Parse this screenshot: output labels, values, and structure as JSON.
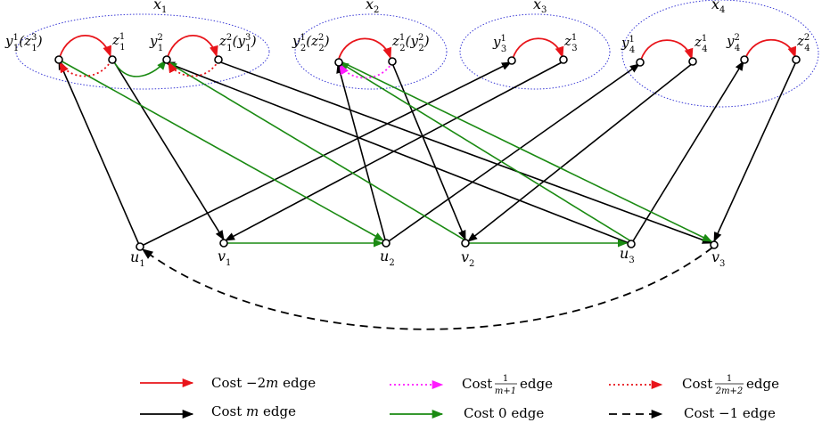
{
  "groups": [
    {
      "name": "x",
      "sub": "1"
    },
    {
      "name": "x",
      "sub": "2"
    },
    {
      "name": "x",
      "sub": "3"
    },
    {
      "name": "x",
      "sub": "4"
    }
  ],
  "top_nodes": [
    {
      "text": "y",
      "sup": "1",
      "sub": "1",
      "extra": "(z",
      "extra_sup": "3",
      "extra_sub": "1",
      "close": ")"
    },
    {
      "text": "z",
      "sup": "1",
      "sub": "1"
    },
    {
      "text": "y",
      "sup": "2",
      "sub": "1"
    },
    {
      "text": "z",
      "sup": "2",
      "sub": "1",
      "extra": "(y",
      "extra_sup": "3",
      "extra_sub": "1",
      "close": ")"
    },
    {
      "text": "y",
      "sup": "1",
      "sub": "2",
      "extra": "(z",
      "extra_sup": "2",
      "extra_sub": "2",
      "close": ")"
    },
    {
      "text": "z",
      "sup": "1",
      "sub": "2",
      "extra": "(y",
      "extra_sup": "2",
      "extra_sub": "2",
      "close": ")"
    },
    {
      "text": "y",
      "sup": "1",
      "sub": "3"
    },
    {
      "text": "z",
      "sup": "1",
      "sub": "3"
    },
    {
      "text": "y",
      "sup": "1",
      "sub": "4"
    },
    {
      "text": "z",
      "sup": "1",
      "sub": "4"
    },
    {
      "text": "y",
      "sup": "2",
      "sub": "4"
    },
    {
      "text": "z",
      "sup": "2",
      "sub": "4"
    }
  ],
  "bottom_nodes": [
    {
      "text": "u",
      "sub": "1"
    },
    {
      "text": "v",
      "sub": "1"
    },
    {
      "text": "u",
      "sub": "2"
    },
    {
      "text": "v",
      "sub": "2"
    },
    {
      "text": "u",
      "sub": "3"
    },
    {
      "text": "v",
      "sub": "3"
    }
  ],
  "legend": {
    "neg2m": {
      "prefix": "Cost ",
      "value": "−2",
      "var": "m",
      "suffix": " edge"
    },
    "frac1": {
      "prefix": "Cost ",
      "num": "1",
      "den": "m+1",
      "suffix": " edge"
    },
    "frac2": {
      "prefix": "Cost ",
      "num": "1",
      "den": "2m+2",
      "suffix": " edge"
    },
    "m": {
      "prefix": "Cost ",
      "var": "m",
      "suffix": " edge"
    },
    "zero": {
      "text": "Cost 0 edge"
    },
    "neg1": {
      "text": "Cost −1 edge"
    }
  },
  "colors": {
    "red": "#e8141a",
    "black": "#000000",
    "green": "#1a8a12",
    "magenta": "#ff1aff",
    "ellipse": "#3a3ad6"
  }
}
